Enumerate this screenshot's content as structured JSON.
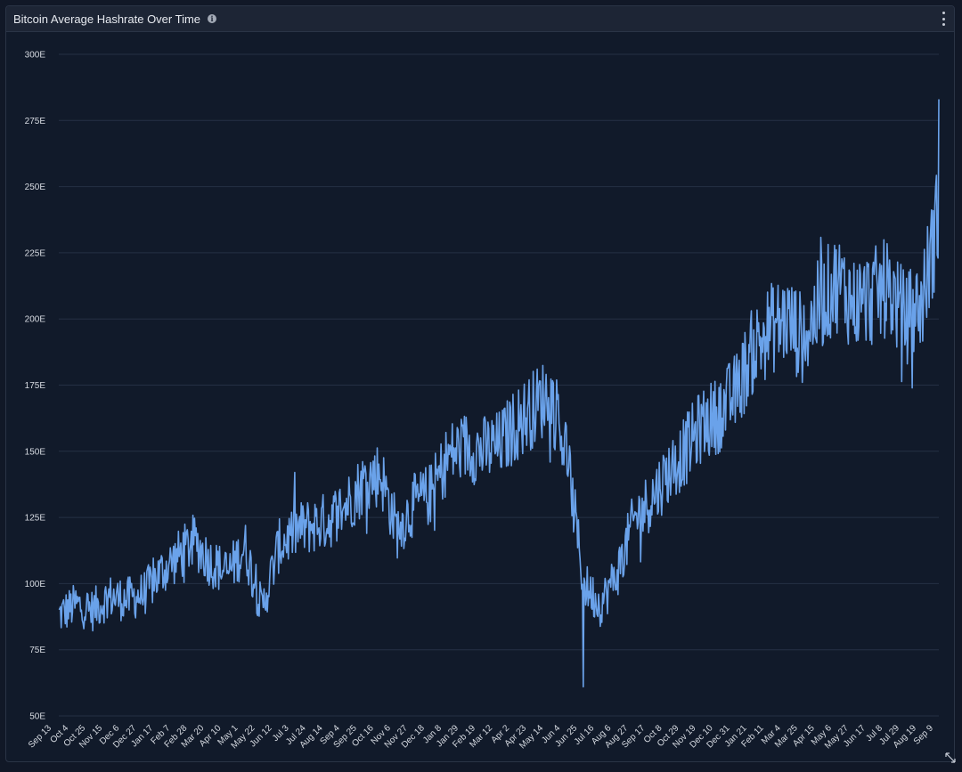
{
  "panel": {
    "title": "Bitcoin Average Hashrate Over Time",
    "info_icon": "info-icon",
    "menu_icon": "vertical-ellipsis-icon",
    "resize_icon": "resize-icon"
  },
  "colors": {
    "background": "#111a2a",
    "header": "#1d2535",
    "line": "#6aa2ea",
    "grid": "#253044",
    "tick_text": "#d7dbe2"
  },
  "chart_data": {
    "type": "line",
    "title": "Bitcoin Average Hashrate Over Time",
    "xlabel": "",
    "ylabel": "",
    "ylim": [
      50,
      300
    ],
    "y_ticks": [
      "50E",
      "75E",
      "100E",
      "125E",
      "150E",
      "175E",
      "200E",
      "225E",
      "250E",
      "275E",
      "300E"
    ],
    "y_tick_values": [
      50,
      75,
      100,
      125,
      150,
      175,
      200,
      225,
      250,
      275,
      300
    ],
    "x_ticks": [
      "Sep 13",
      "Oct 4",
      "Oct 25",
      "Nov 15",
      "Dec 6",
      "Dec 27",
      "Jan 17",
      "Feb 7",
      "Feb 28",
      "Mar 20",
      "Apr 10",
      "May 1",
      "May 22",
      "Jun 12",
      "Jul 3",
      "Jul 24",
      "Aug 14",
      "Sep 4",
      "Sep 25",
      "Oct 16",
      "Nov 6",
      "Nov 27",
      "Dec 18",
      "Jan 8",
      "Jan 29",
      "Feb 19",
      "Mar 12",
      "Apr 2",
      "Apr 23",
      "May 14",
      "Jun 4",
      "Jun 25",
      "Jul 16",
      "Aug 6",
      "Aug 27",
      "Sep 17",
      "Oct 8",
      "Oct 29",
      "Nov 19",
      "Dec 10",
      "Dec 31",
      "Jan 21",
      "Feb 11",
      "Mar 4",
      "Mar 25",
      "Apr 15",
      "May 6",
      "May 27",
      "Jun 17",
      "Jul 8",
      "Jul 29",
      "Aug 19",
      "Sep 9"
    ],
    "grid": true,
    "legend": "none",
    "series": [
      {
        "x": [
          "Sep 13",
          "Oct 4",
          "Oct 25",
          "Nov 15",
          "Dec 6",
          "Dec 27",
          "Jan 17",
          "Feb 7",
          "Feb 28",
          "Mar 20",
          "Apr 10",
          "May 1",
          "May 22",
          "Jun 12",
          "Jul 3",
          "Jul 24",
          "Aug 14",
          "Sep 4",
          "Sep 25",
          "Oct 16",
          "Nov 6",
          "Nov 27",
          "Dec 18",
          "Jan 8",
          "Jan 29",
          "Feb 19",
          "Mar 12",
          "Apr 2",
          "Apr 23",
          "May 14",
          "Jun 4",
          "Jun 25",
          "Jul 16",
          "Aug 6",
          "Aug 27",
          "Sep 17",
          "Oct 8",
          "Oct 29",
          "Nov 19",
          "Dec 10",
          "Dec 31",
          "Jan 21",
          "Feb 11",
          "Mar 4",
          "Mar 25",
          "Apr 15",
          "May 6",
          "May 27",
          "Jun 17",
          "Jul 8",
          "Jul 29",
          "Aug 19",
          "Sep 9"
        ],
        "values": [
          88,
          92,
          90,
          95,
          94,
          96,
          104,
          110,
          116,
          108,
          104,
          114,
          90,
          114,
          120,
          122,
          124,
          130,
          138,
          142,
          120,
          130,
          134,
          148,
          152,
          150,
          152,
          160,
          166,
          172,
          150,
          100,
          92,
          104,
          124,
          132,
          142,
          150,
          160,
          164,
          172,
          188,
          196,
          200,
          192,
          206,
          214,
          206,
          208,
          212,
          200,
          206,
          240
        ]
      }
    ],
    "annotations": {
      "max": 283,
      "min": 61
    }
  }
}
